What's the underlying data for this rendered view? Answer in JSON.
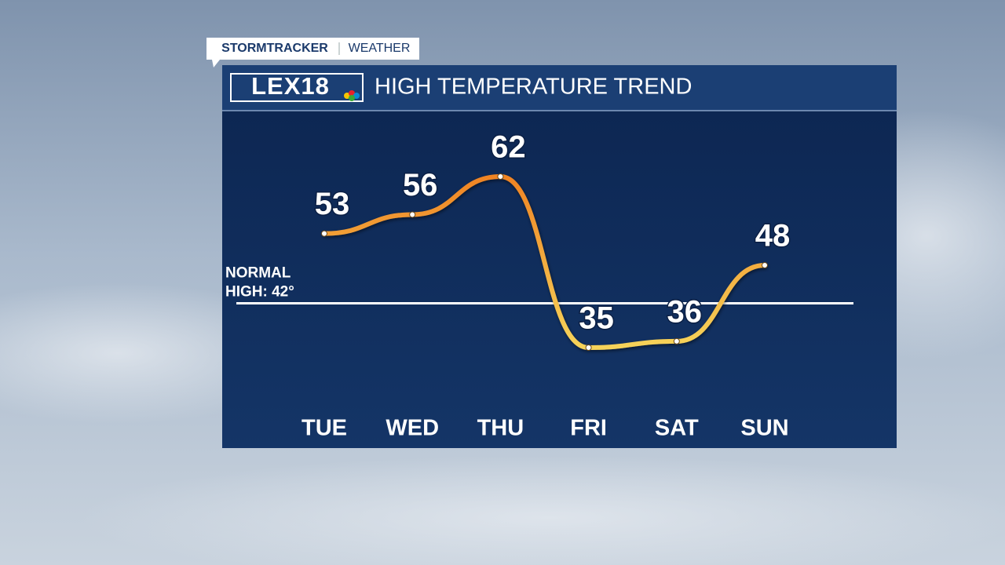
{
  "header": {
    "brand": "STORMTRACKER",
    "section": "WEATHER"
  },
  "chart_data": {
    "type": "line",
    "logo": "LEX18",
    "title": "HIGH TEMPERATURE TREND",
    "categories": [
      "TUE",
      "WED",
      "THU",
      "FRI",
      "SAT",
      "SUN"
    ],
    "values": [
      53,
      56,
      62,
      35,
      36,
      48
    ],
    "color": [
      "#ef8424",
      "#f6d35a"
    ],
    "reference_line": {
      "value": 42,
      "label": [
        "NORMAL",
        "HIGH: 42°"
      ]
    }
  }
}
